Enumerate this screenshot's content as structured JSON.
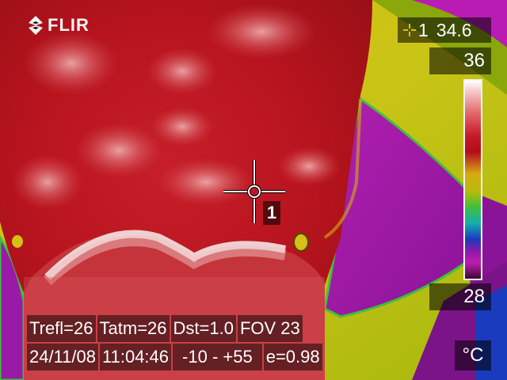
{
  "brand": {
    "name": "FLIR",
    "icon": "flir-diamond-logo"
  },
  "spot_meter": {
    "icon": "crosshair-plus-icon",
    "id": "1",
    "value": "34.6"
  },
  "scale": {
    "max": "36",
    "min": "28",
    "unit": "°C",
    "colors": [
      "#ffffff",
      "#c41a2a",
      "#d6aa14",
      "#3fbf3f",
      "#15aeae",
      "#1a3bbd",
      "#c01cb0"
    ]
  },
  "marker": {
    "label": "1"
  },
  "params": {
    "trefl": "Trefl=26",
    "tatm": "Tatm=26",
    "dst": "Dst=1.0",
    "fov": "FOV 23",
    "date": "24/11/08",
    "time": "11:04:46",
    "range": "-10 -  +55",
    "emissivity": "e=0.98"
  }
}
